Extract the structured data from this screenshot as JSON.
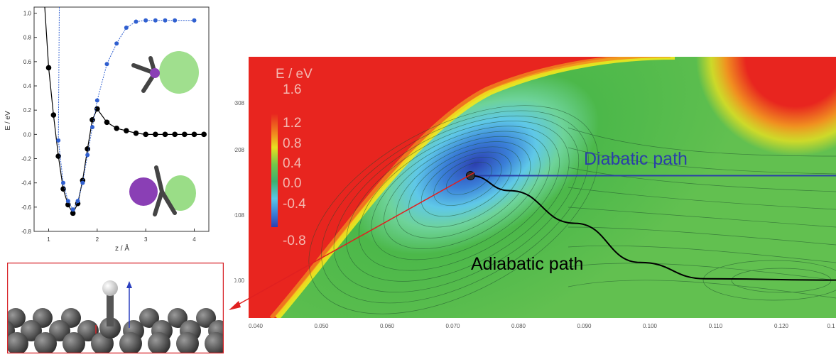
{
  "left_plot": {
    "xlabel": "z / Å",
    "ylabel": "E / eV",
    "x_ticks": [
      "1",
      "2",
      "3",
      "4"
    ],
    "y_ticks": [
      "1.0",
      "0.8",
      "0.6",
      "0.4",
      "0.2",
      "0.0",
      "-0.2",
      "-0.4",
      "-0.6",
      "-0.8"
    ],
    "colors": {
      "adiabatic": "#000000",
      "diabatic": "#2f5fd0",
      "frame": "#333333"
    }
  },
  "surface_plot": {
    "colorbar_title": "E / eV",
    "colorbar_labels": [
      "1.6",
      "1.2",
      "0.8",
      "0.4",
      "0.0",
      "-0.4",
      "-0.8"
    ],
    "y_ticks": [
      "0.0308",
      "0.0208",
      "0.0108",
      "0.00"
    ],
    "x_ticks": [
      "0.040",
      "0.050",
      "0.060",
      "0.070",
      "0.080",
      "0.090",
      "0.100",
      "0.110",
      "0.120",
      "0.1"
    ],
    "diabatic_label": "Diabatic path",
    "adiabatic_label": "Adiabatic path",
    "colors": {
      "diabatic": "#2a3fa8",
      "adiabatic": "#000000",
      "arrow": "#e02020",
      "background": "#e8251f"
    }
  },
  "inset": {
    "colors": {
      "border": "#d8252a",
      "atoms": "#3c3c3c",
      "adsorbate": "#e0e0e0",
      "arrow": "#2a3fbf"
    }
  },
  "chart_data": [
    {
      "type": "line",
      "xlabel": "z / Å",
      "ylabel": "E / eV",
      "xlim": [
        0.7,
        4.3
      ],
      "ylim": [
        -0.8,
        1.05
      ],
      "series": [
        {
          "x": [
            1.0,
            1.1,
            1.2,
            1.3,
            1.4,
            1.5,
            1.6,
            1.7,
            1.8,
            1.9,
            2.0,
            2.2,
            2.4,
            2.6,
            2.8,
            3.0,
            3.2,
            3.4,
            3.6,
            3.8,
            4.0,
            4.2
          ],
          "y": [
            0.55,
            0.16,
            -0.18,
            -0.45,
            -0.58,
            -0.65,
            -0.57,
            -0.38,
            -0.12,
            0.12,
            0.21,
            0.1,
            0.05,
            0.03,
            0.01,
            0.0,
            0.0,
            0.0,
            0.0,
            0.0,
            0.0,
            0.0
          ]
        },
        {
          "x": [
            1.2,
            1.3,
            1.4,
            1.5,
            1.6,
            1.7,
            1.8,
            1.9,
            2.0,
            2.2,
            2.4,
            2.6,
            2.8,
            3.0,
            3.2,
            3.4,
            3.6,
            4.0
          ],
          "y": [
            -0.05,
            -0.4,
            -0.55,
            -0.62,
            -0.55,
            -0.4,
            -0.17,
            0.06,
            0.28,
            0.58,
            0.75,
            0.88,
            0.93,
            0.94,
            0.94,
            0.94,
            0.94,
            0.94
          ]
        }
      ]
    },
    {
      "type": "heatmap",
      "title": "E / eV",
      "xlim": [
        0.04,
        0.13
      ],
      "ylim": [
        -0.005,
        0.035
      ],
      "colorbar_range": [
        -0.8,
        1.6
      ],
      "minimum": {
        "x": 0.074,
        "y": 0.0168,
        "value": -0.8
      },
      "paths": [
        {
          "name": "Diabatic path",
          "x": [
            0.074,
            0.13
          ],
          "y": [
            0.0168,
            0.0168
          ]
        },
        {
          "name": "Adiabatic path",
          "x": [
            0.074,
            0.08,
            0.09,
            0.1,
            0.11,
            0.13
          ],
          "y": [
            0.0168,
            0.0145,
            0.0095,
            0.0035,
            0.001,
            0.0008
          ]
        }
      ]
    }
  ]
}
